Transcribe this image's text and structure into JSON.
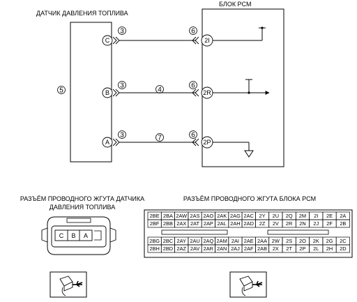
{
  "sensor": {
    "title": "ДАТЧИК ДАВЛЕНИЯ ТОПЛИВА",
    "label_num": "5",
    "pins": [
      "C",
      "B",
      "A"
    ]
  },
  "pcm": {
    "title": "БЛОК PCM",
    "pins": [
      "2I",
      "2R",
      "2P"
    ]
  },
  "wires": [
    {
      "sensor_pin": "C",
      "left_num": "3",
      "middle_num": "",
      "right_num": "6",
      "pcm_pin": "2I"
    },
    {
      "sensor_pin": "B",
      "left_num": "3",
      "middle_num": "4",
      "right_num": "6",
      "pcm_pin": "2R"
    },
    {
      "sensor_pin": "A",
      "left_num": "3",
      "middle_num": "7",
      "right_num": "6",
      "pcm_pin": "2P"
    }
  ],
  "sensor_harness": {
    "title_line1": "РАЗЪЁМ ПРОВОДНОГО ЖГУТА ДАТЧИКА",
    "title_line2": "ДАВЛЕНИЯ ТОПЛИВА",
    "cells": [
      "C",
      "B",
      "A"
    ]
  },
  "pcm_harness": {
    "title": "РАЗЪЁМ ПРОВОДНОГО ЖГУТА БЛОКА PCM",
    "rows": [
      [
        "2BE",
        "2BA",
        "2AW",
        "2AS",
        "2AO",
        "2AK",
        "2AG",
        "2AC",
        "2Y",
        "2U",
        "2Q",
        "2M",
        "2I",
        "2E",
        "2A"
      ],
      [
        "2BF",
        "2BB",
        "2AX",
        "2AT",
        "2AP",
        "2AL",
        "2AH",
        "2AD",
        "2Z",
        "2V",
        "2R",
        "2N",
        "2J",
        "2F",
        "2B"
      ],
      [
        "2BG",
        "2BC",
        "2AY",
        "2AU",
        "2AQ",
        "2AM",
        "2AI",
        "2AE",
        "2AA",
        "2W",
        "2S",
        "2O",
        "2K",
        "2G",
        "2C"
      ],
      [
        "2BH",
        "2BD",
        "2AZ",
        "2AV",
        "2AR",
        "2AN",
        "2AJ",
        "2AF",
        "2AB",
        "2X",
        "2T",
        "2P",
        "2L",
        "2H",
        "2D"
      ]
    ]
  }
}
